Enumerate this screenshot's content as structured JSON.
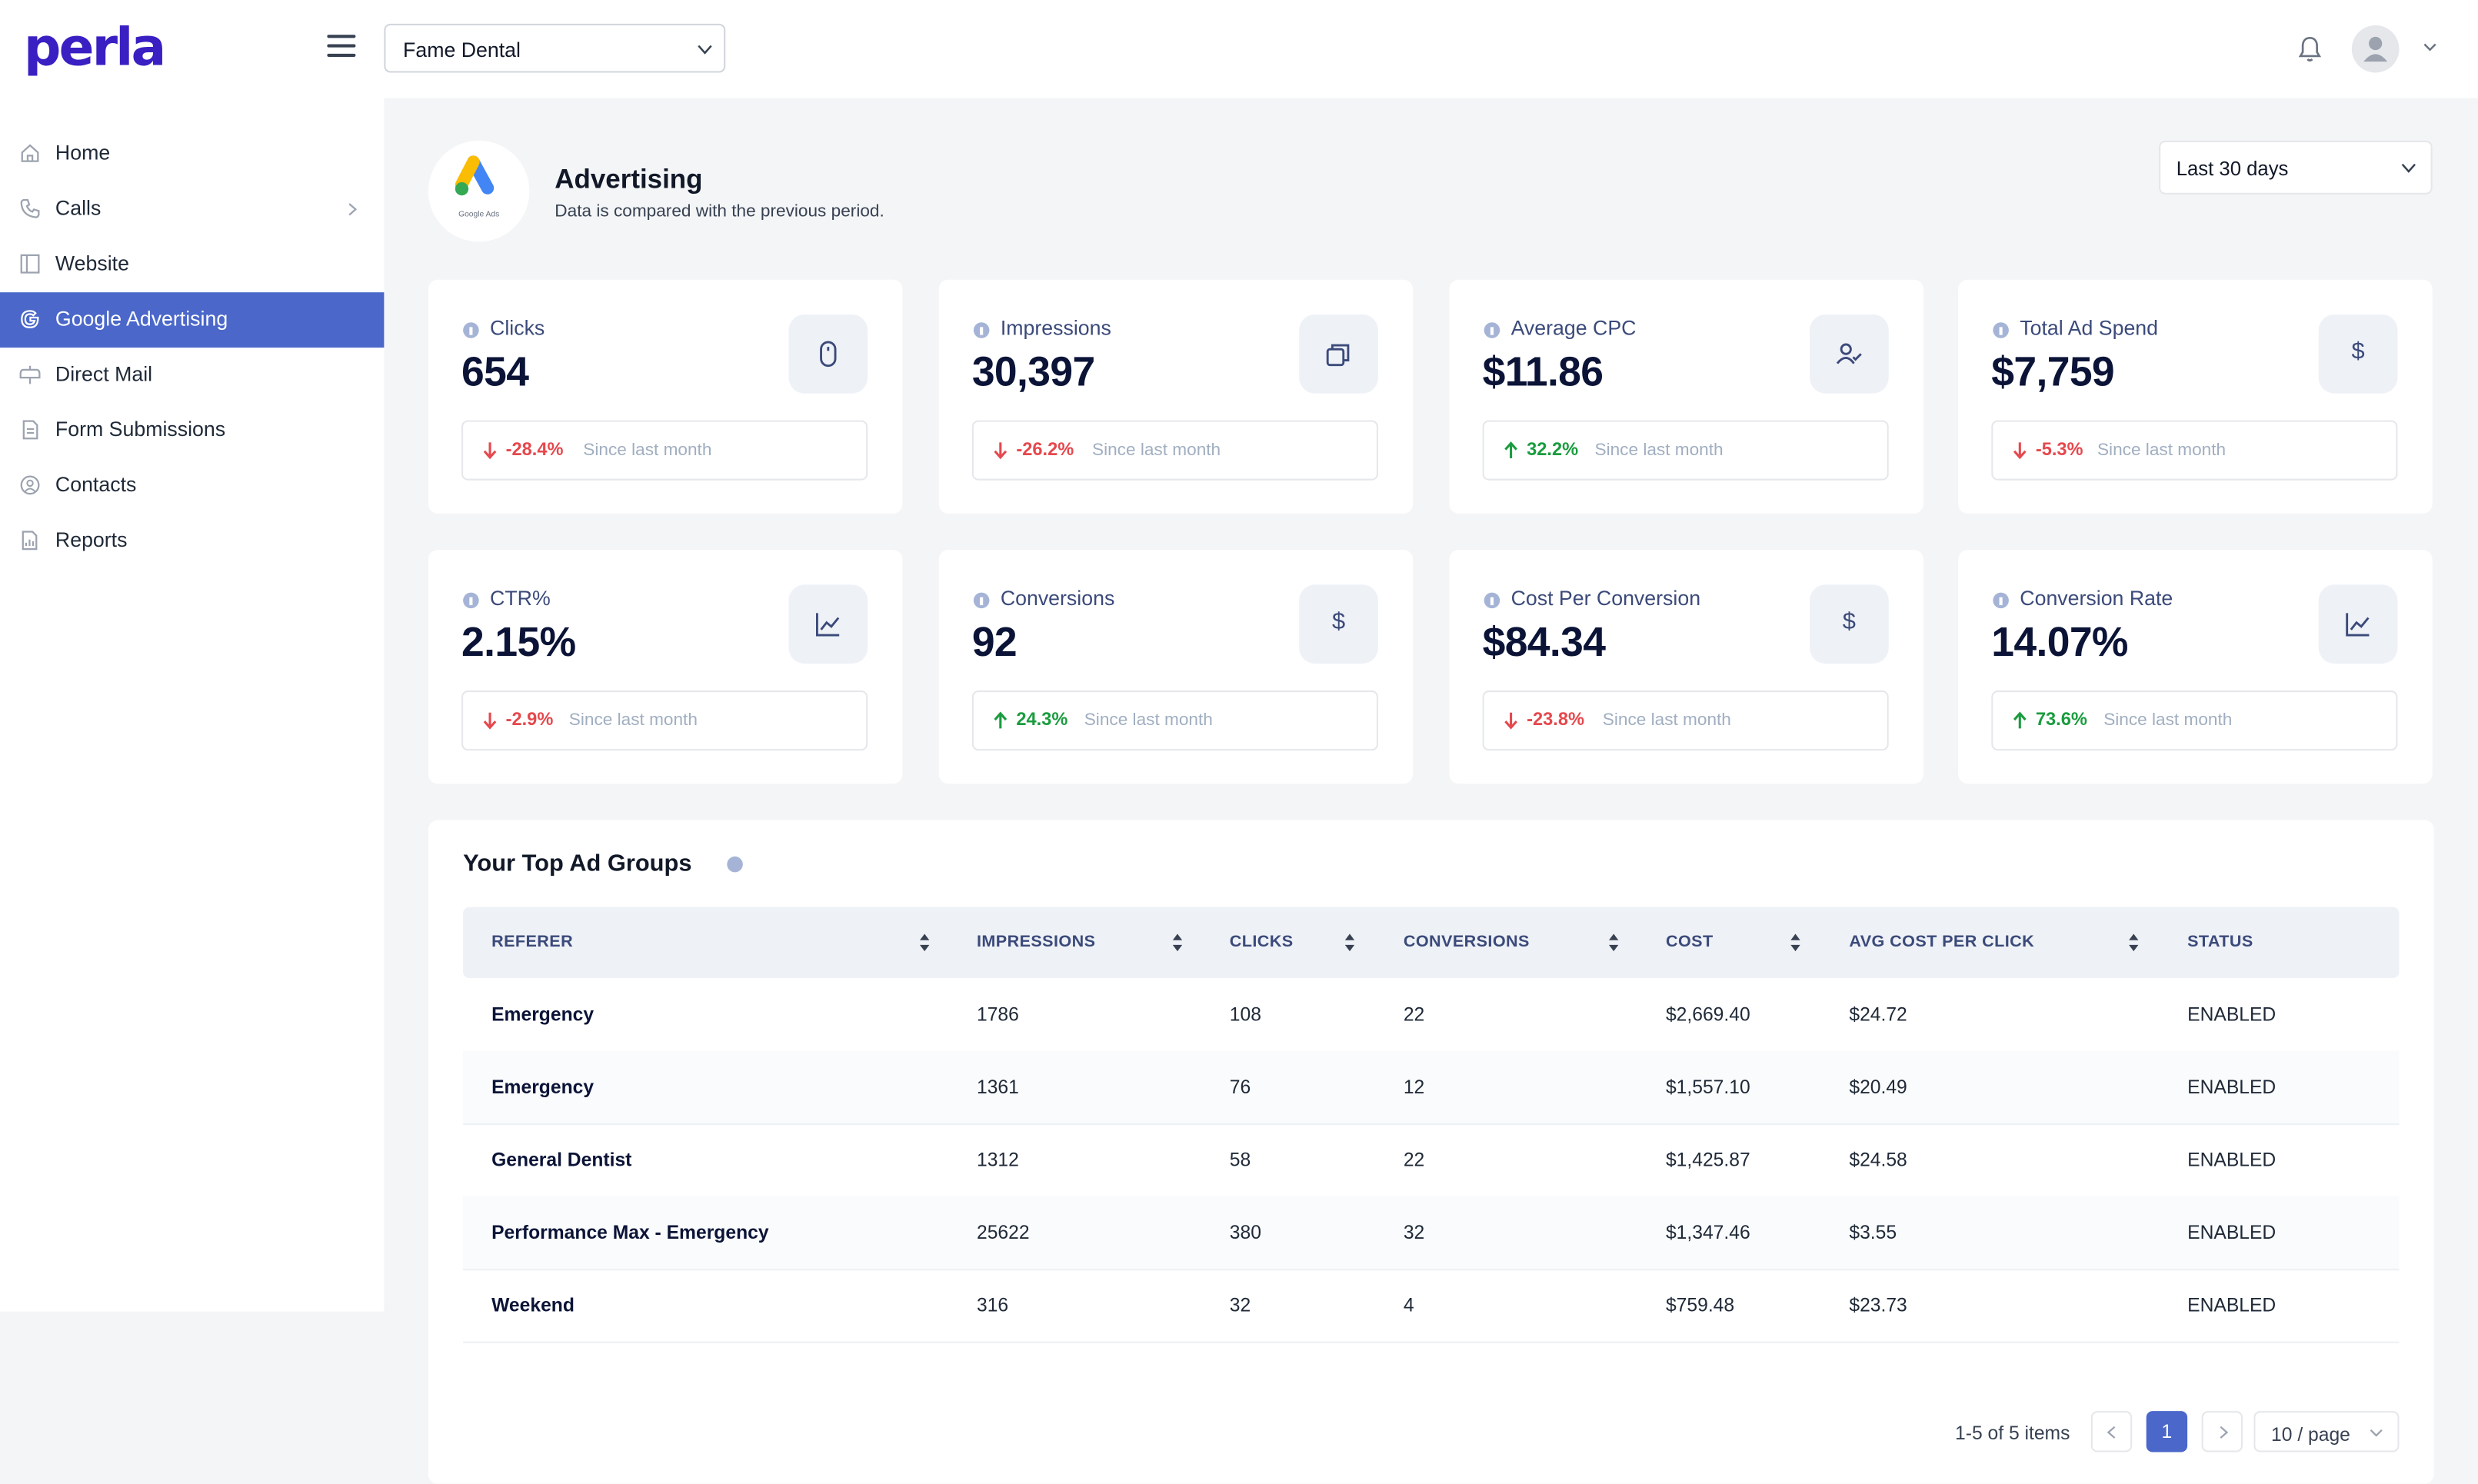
{
  "header": {
    "logo": "perla",
    "practice": "Fame Dental"
  },
  "sidebar": {
    "items": [
      {
        "label": "Home",
        "icon": "home-icon"
      },
      {
        "label": "Calls",
        "icon": "phone-icon"
      },
      {
        "label": "Website",
        "icon": "website-icon"
      },
      {
        "label": "Google Advertising",
        "icon": "google-icon",
        "active": true
      },
      {
        "label": "Direct Mail",
        "icon": "mailbox-icon"
      },
      {
        "label": "Form Submissions",
        "icon": "form-icon"
      },
      {
        "label": "Contacts",
        "icon": "contact-icon"
      },
      {
        "label": "Reports",
        "icon": "report-icon"
      }
    ]
  },
  "page": {
    "logo_caption": "Google Ads",
    "title": "Advertising",
    "subtitle": "Data is compared with the previous period.",
    "period": "Last 30 days"
  },
  "stats": [
    {
      "title": "Clicks",
      "value": "654",
      "delta": "-28.4%",
      "direction": "down",
      "note": "Since last month",
      "icon": "mouse-icon"
    },
    {
      "title": "Impressions",
      "value": "30,397",
      "delta": "-26.2%",
      "direction": "down",
      "note": "Since last month",
      "icon": "layers-icon"
    },
    {
      "title": "Average CPC",
      "value": "$11.86",
      "delta": "32.2%",
      "direction": "up",
      "note": "Since last month",
      "icon": "user-check-icon"
    },
    {
      "title": "Total Ad Spend",
      "value": "$7,759",
      "delta": "-5.3%",
      "direction": "down",
      "note": "Since last month",
      "icon": "dollar-icon"
    },
    {
      "title": "CTR%",
      "value": "2.15%",
      "delta": "-2.9%",
      "direction": "down",
      "note": "Since last month",
      "icon": "chart-icon"
    },
    {
      "title": "Conversions",
      "value": "92",
      "delta": "24.3%",
      "direction": "up",
      "note": "Since last month",
      "icon": "dollar-icon"
    },
    {
      "title": "Cost Per Conversion",
      "value": "$84.34",
      "delta": "-23.8%",
      "direction": "down",
      "note": "Since last month",
      "icon": "dollar-icon"
    },
    {
      "title": "Conversion Rate",
      "value": "14.07%",
      "delta": "73.6%",
      "direction": "up",
      "note": "Since last month",
      "icon": "chart-icon"
    }
  ],
  "table": {
    "title": "Your Top Ad Groups",
    "columns": [
      "REFERER",
      "IMPRESSIONS",
      "CLICKS",
      "CONVERSIONS",
      "COST",
      "AVG COST PER CLICK",
      "STATUS"
    ],
    "rows": [
      [
        "Emergency",
        "1786",
        "108",
        "22",
        "$2,669.40",
        "$24.72",
        "ENABLED"
      ],
      [
        "Emergency",
        "1361",
        "76",
        "12",
        "$1,557.10",
        "$20.49",
        "ENABLED"
      ],
      [
        "General Dentist",
        "1312",
        "58",
        "22",
        "$1,425.87",
        "$24.58",
        "ENABLED"
      ],
      [
        "Performance Max - Emergency",
        "25622",
        "380",
        "32",
        "$1,347.46",
        "$3.55",
        "ENABLED"
      ],
      [
        "Weekend",
        "316",
        "32",
        "4",
        "$759.48",
        "$23.73",
        "ENABLED"
      ]
    ]
  },
  "pagination": {
    "summary": "1-5 of 5 items",
    "current_page": "1",
    "page_size": "10 / page"
  },
  "colors": {
    "brand": "#3a1fc2",
    "accent": "#4a67c9",
    "down": "#e5484d",
    "up": "#1a9c3e"
  }
}
